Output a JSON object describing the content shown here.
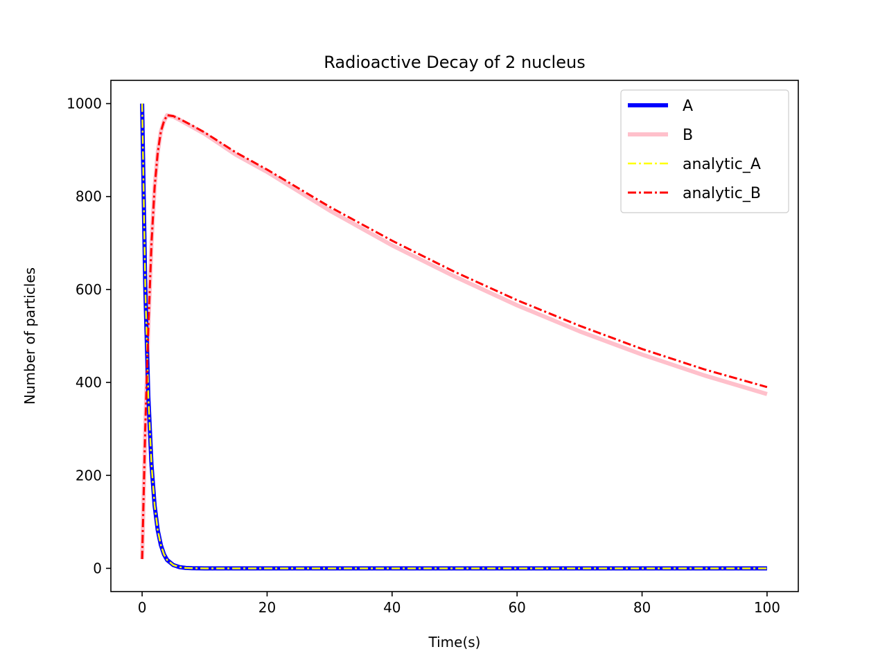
{
  "chart_data": {
    "type": "line",
    "title": "Radioactive Decay of 2 nucleus",
    "xlabel": "Time(s)",
    "ylabel": "Number of particles",
    "xlim": [
      -5,
      105
    ],
    "ylim": [
      -50,
      1050
    ],
    "xticks": [
      0,
      20,
      40,
      60,
      80,
      100
    ],
    "xtick_labels": [
      "0",
      "20",
      "40",
      "60",
      "80",
      "100"
    ],
    "yticks": [
      0,
      200,
      400,
      600,
      800,
      1000
    ],
    "ytick_labels": [
      "0",
      "200",
      "400",
      "600",
      "800",
      "1000"
    ],
    "grid": false,
    "legend_position": "top-right",
    "series": [
      {
        "name": "A",
        "color": "#0000ff",
        "style": "solid-thick",
        "x": [
          0,
          0.5,
          1,
          1.5,
          2,
          2.5,
          3,
          3.5,
          4,
          5,
          6,
          7,
          8,
          10,
          20,
          40,
          60,
          80,
          100
        ],
        "y": [
          1000,
          607,
          368,
          223,
          135,
          82,
          50,
          30,
          18,
          7,
          2.5,
          0.9,
          0.3,
          0,
          0,
          0,
          0,
          0,
          0
        ]
      },
      {
        "name": "B",
        "color": "#ffc0cb",
        "style": "solid-thick",
        "x": [
          0,
          0.5,
          1,
          1.5,
          2,
          2.5,
          3,
          3.5,
          4,
          5,
          6,
          8,
          10,
          15,
          20,
          30,
          40,
          50,
          60,
          70,
          80,
          90,
          100
        ],
        "y": [
          20,
          300,
          520,
          700,
          820,
          895,
          940,
          962,
          975,
          972,
          965,
          950,
          935,
          890,
          853,
          770,
          695,
          628,
          566,
          510,
          460,
          415,
          375
        ]
      },
      {
        "name": "analytic_A",
        "color": "#ffff00",
        "style": "dashdot",
        "x": [
          0,
          0.5,
          1,
          1.5,
          2,
          2.5,
          3,
          3.5,
          4,
          5,
          6,
          7,
          8,
          10,
          20,
          40,
          60,
          80,
          100
        ],
        "y": [
          1000,
          607,
          368,
          223,
          135,
          82,
          50,
          30,
          18,
          7,
          2.5,
          0.9,
          0.3,
          0,
          0,
          0,
          0,
          0,
          0
        ]
      },
      {
        "name": "analytic_B",
        "color": "#ff0000",
        "style": "dashdot",
        "x": [
          0,
          0.5,
          1,
          1.5,
          2,
          2.5,
          3,
          3.5,
          4,
          5,
          6,
          8,
          10,
          15,
          20,
          30,
          40,
          50,
          60,
          70,
          80,
          90,
          100
        ],
        "y": [
          20,
          300,
          520,
          700,
          820,
          895,
          940,
          962,
          975,
          973,
          967,
          953,
          938,
          895,
          858,
          778,
          705,
          638,
          577,
          522,
          472,
          428,
          390
        ]
      }
    ]
  }
}
